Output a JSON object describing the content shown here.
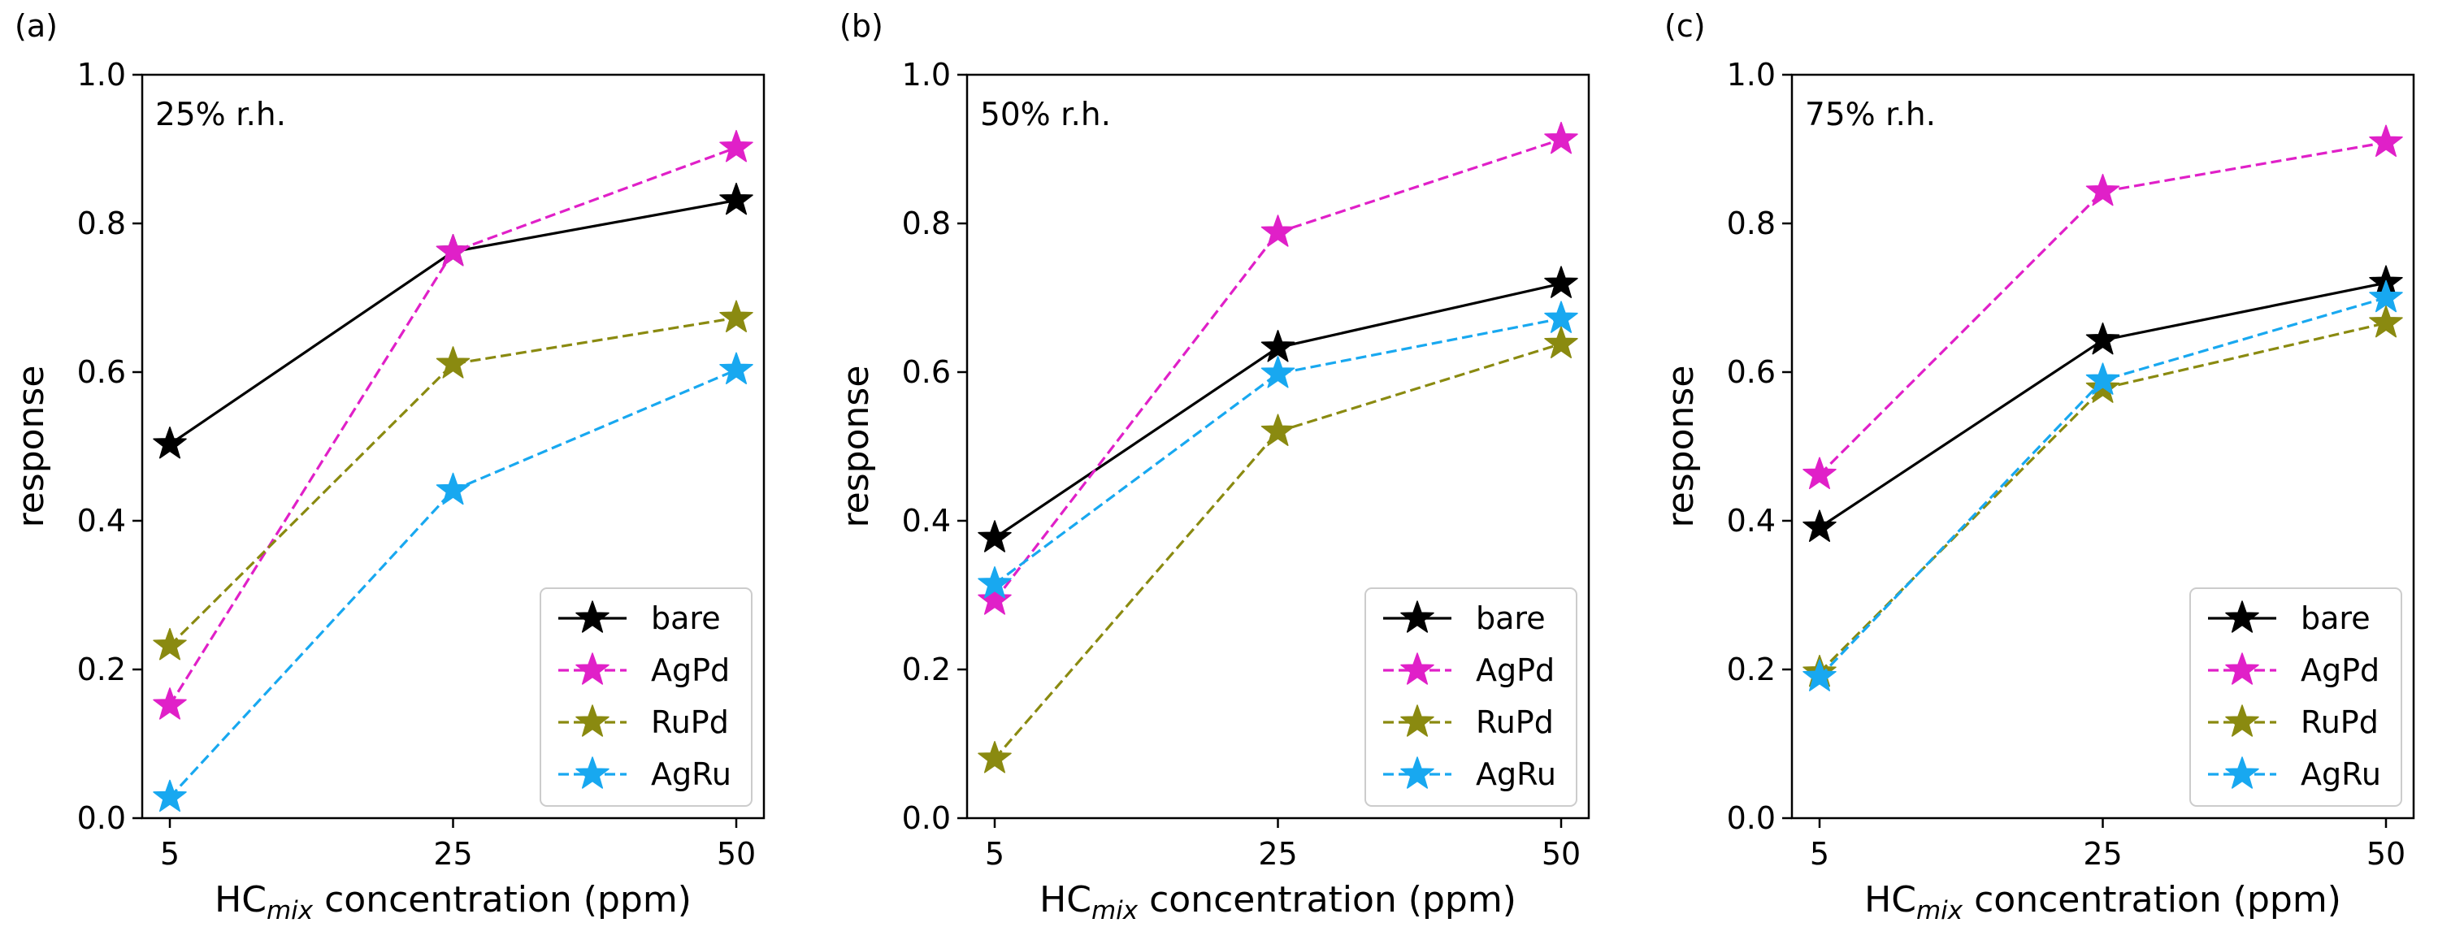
{
  "figure": {
    "panels": [
      "(a)",
      "(b)",
      "(c)"
    ]
  },
  "chart_data": [
    {
      "type": "line",
      "panel_label": "(a)",
      "annotation": "25% r.h.",
      "xlabel_main": "HC",
      "xlabel_sub": "mix",
      "xlabel_rest": " concentration (ppm)",
      "ylabel": "response",
      "categories": [
        "5",
        "25",
        "50"
      ],
      "ylim": [
        0.0,
        1.0
      ],
      "yticks": [
        "0.0",
        "0.2",
        "0.4",
        "0.6",
        "0.8",
        "1.0"
      ],
      "legend_position": "lower-right",
      "series": [
        {
          "name": "bare",
          "values": [
            0.503,
            0.762,
            0.831
          ],
          "color": "#000000",
          "dashed": false
        },
        {
          "name": "AgPd",
          "values": [
            0.152,
            0.762,
            0.902
          ],
          "color": "#e020c8",
          "dashed": true
        },
        {
          "name": "RuPd",
          "values": [
            0.232,
            0.611,
            0.673
          ],
          "color": "#8a8a10",
          "dashed": true
        },
        {
          "name": "AgRu",
          "values": [
            0.028,
            0.441,
            0.603
          ],
          "color": "#18a8f0",
          "dashed": true
        }
      ]
    },
    {
      "type": "line",
      "panel_label": "(b)",
      "annotation": "50% r.h.",
      "xlabel_main": "HC",
      "xlabel_sub": "mix",
      "xlabel_rest": " concentration (ppm)",
      "ylabel": "response",
      "categories": [
        "5",
        "25",
        "50"
      ],
      "ylim": [
        0.0,
        1.0
      ],
      "yticks": [
        "0.0",
        "0.2",
        "0.4",
        "0.6",
        "0.8",
        "1.0"
      ],
      "legend_position": "lower-right",
      "series": [
        {
          "name": "bare",
          "values": [
            0.377,
            0.633,
            0.719
          ],
          "color": "#000000",
          "dashed": false
        },
        {
          "name": "AgPd",
          "values": [
            0.293,
            0.788,
            0.913
          ],
          "color": "#e020c8",
          "dashed": true
        },
        {
          "name": "RuPd",
          "values": [
            0.08,
            0.52,
            0.638
          ],
          "color": "#8a8a10",
          "dashed": true
        },
        {
          "name": "AgRu",
          "values": [
            0.315,
            0.598,
            0.672
          ],
          "color": "#18a8f0",
          "dashed": true
        }
      ]
    },
    {
      "type": "line",
      "panel_label": "(c)",
      "annotation": "75% r.h.",
      "xlabel_main": "HC",
      "xlabel_sub": "mix",
      "xlabel_rest": " concentration (ppm)",
      "ylabel": "response",
      "categories": [
        "5",
        "25",
        "50"
      ],
      "ylim": [
        0.0,
        1.0
      ],
      "yticks": [
        "0.0",
        "0.2",
        "0.4",
        "0.6",
        "0.8",
        "1.0"
      ],
      "legend_position": "lower-right",
      "series": [
        {
          "name": "bare",
          "values": [
            0.391,
            0.643,
            0.72
          ],
          "color": "#000000",
          "dashed": false
        },
        {
          "name": "AgPd",
          "values": [
            0.462,
            0.843,
            0.909
          ],
          "color": "#e020c8",
          "dashed": true
        },
        {
          "name": "RuPd",
          "values": [
            0.196,
            0.578,
            0.666
          ],
          "color": "#8a8a10",
          "dashed": true
        },
        {
          "name": "AgRu",
          "values": [
            0.19,
            0.589,
            0.7
          ],
          "color": "#18a8f0",
          "dashed": true
        }
      ]
    }
  ]
}
